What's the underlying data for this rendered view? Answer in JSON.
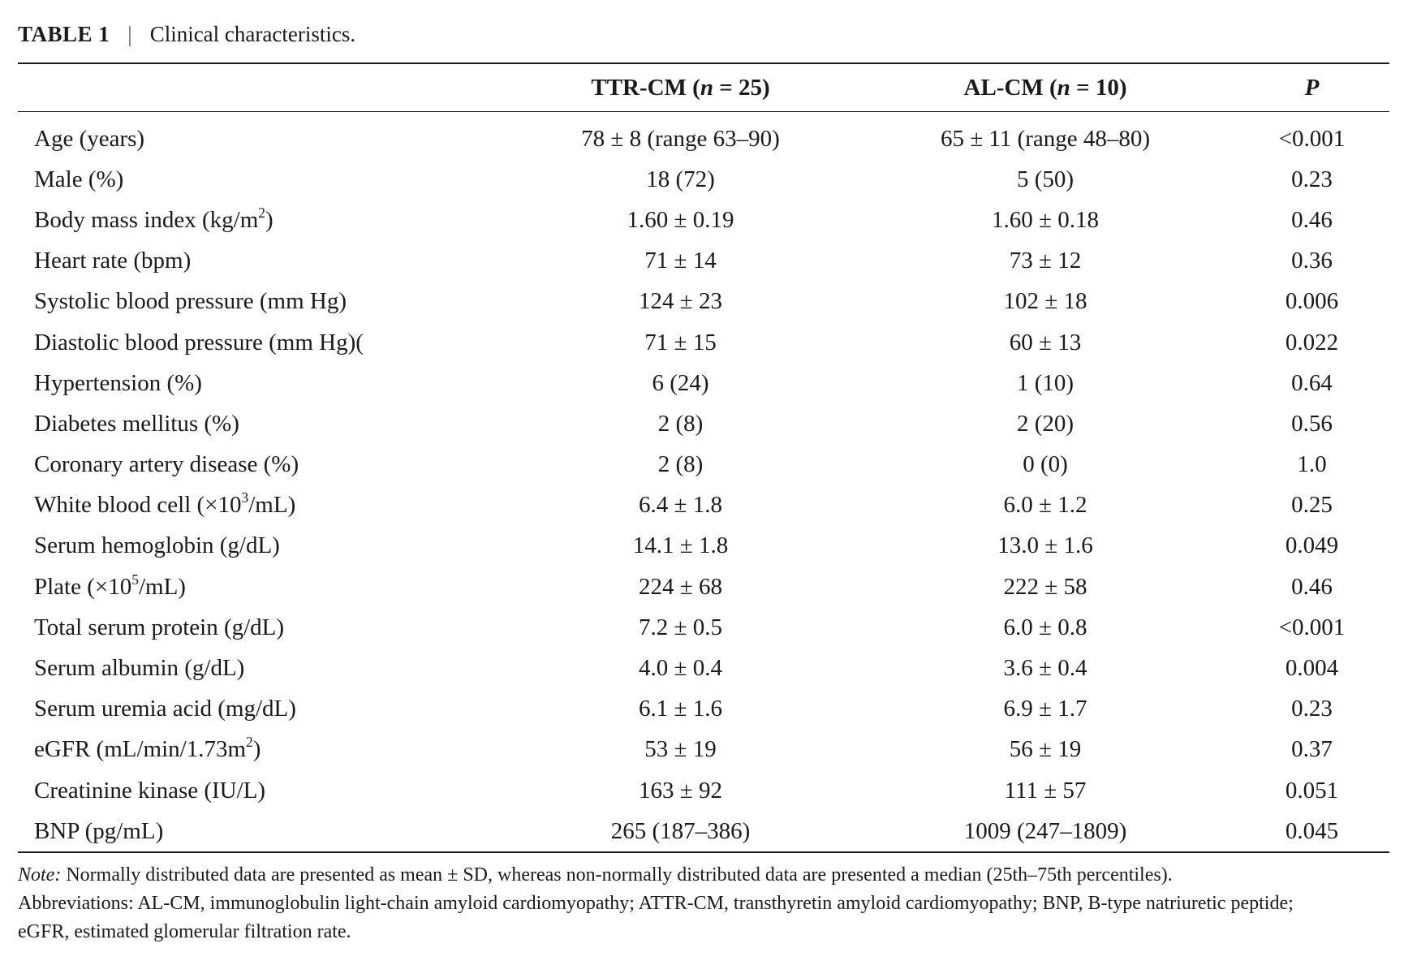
{
  "caption": {
    "label": "TABLE 1",
    "separator": "|",
    "title": "Clinical characteristics."
  },
  "headers": {
    "col0": "",
    "ttr_prefix": "TTR-CM (",
    "ttr_n": "n",
    "ttr_suffix": " = 25)",
    "al_prefix": "AL-CM (",
    "al_n": "n",
    "al_suffix": " = 10)",
    "p": "P"
  },
  "rows": [
    {
      "label": "Age (years)",
      "ttr": "78 ± 8 (range 63–90)",
      "al": "65 ± 11 (range 48–80)",
      "p": "<0.001"
    },
    {
      "label": "Male (%)",
      "ttr": "18 (72)",
      "al": "5 (50)",
      "p": "0.23"
    },
    {
      "label": "Body mass index (kg/m",
      "sup": "2",
      "label_after": ")",
      "ttr": "1.60 ± 0.19",
      "al": "1.60 ± 0.18",
      "p": "0.46"
    },
    {
      "label": "Heart rate (bpm)",
      "ttr": "71 ± 14",
      "al": "73 ± 12",
      "p": "0.36"
    },
    {
      "label": "Systolic blood pressure (mm Hg)",
      "ttr": "124 ± 23",
      "al": "102 ± 18",
      "p": "0.006"
    },
    {
      "label": "Diastolic blood pressure (mm Hg)(",
      "ttr": "71 ± 15",
      "al": "60 ± 13",
      "p": "0.022"
    },
    {
      "label": "Hypertension (%)",
      "ttr": "6 (24)",
      "al": "1 (10)",
      "p": "0.64"
    },
    {
      "label": "Diabetes mellitus (%)",
      "ttr": "2 (8)",
      "al": "2 (20)",
      "p": "0.56"
    },
    {
      "label": "Coronary artery disease (%)",
      "ttr": "2 (8)",
      "al": "0 (0)",
      "p": "1.0"
    },
    {
      "label": "White blood cell (×10",
      "sup": "3",
      "label_after": "/mL)",
      "ttr": "6.4 ± 1.8",
      "al": "6.0 ± 1.2",
      "p": "0.25"
    },
    {
      "label": "Serum hemoglobin (g/dL)",
      "ttr": "14.1 ± 1.8",
      "al": "13.0 ± 1.6",
      "p": "0.049"
    },
    {
      "label": "Plate (×10",
      "sup": "5",
      "label_after": "/mL)",
      "ttr": "224 ± 68",
      "al": "222 ± 58",
      "p": "0.46"
    },
    {
      "label": "Total serum protein (g/dL)",
      "ttr": "7.2 ± 0.5",
      "al": "6.0 ± 0.8",
      "p": "<0.001"
    },
    {
      "label": "Serum albumin (g/dL)",
      "ttr": "4.0 ± 0.4",
      "al": "3.6 ± 0.4",
      "p": "0.004"
    },
    {
      "label": "Serum uremia acid (mg/dL)",
      "ttr": "6.1 ± 1.6",
      "al": "6.9 ± 1.7",
      "p": "0.23"
    },
    {
      "label": "eGFR (mL/min/1.73m",
      "sup": "2",
      "label_after": ")",
      "ttr": "53 ± 19",
      "al": "56 ± 19",
      "p": "0.37"
    },
    {
      "label": "Creatinine kinase (IU/L)",
      "ttr": "163 ± 92",
      "al": "111 ± 57",
      "p": "0.051"
    },
    {
      "label": "BNP (pg/mL)",
      "ttr": "265 (187–386)",
      "al": "1009 (247–1809)",
      "p": "0.045"
    }
  ],
  "notes": {
    "note_label": "Note:",
    "note_text": " Normally distributed data are presented as mean ± SD, whereas non-normally distributed data are presented a median (25th–75th percentiles).",
    "abbrev_line1": "Abbreviations: AL-CM, immunoglobulin light-chain amyloid cardiomyopathy; ATTR-CM, transthyretin amyloid cardiomyopathy; BNP, B-type natriuretic peptide;",
    "abbrev_line2": "eGFR, estimated glomerular filtration rate."
  }
}
